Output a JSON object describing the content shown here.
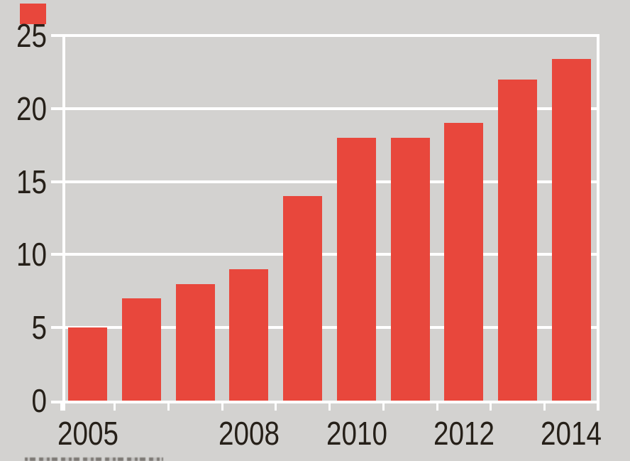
{
  "brand": {
    "tab_color": "#E8473C"
  },
  "chart_data": {
    "type": "bar",
    "title": "",
    "categories": [
      "2005",
      "2006",
      "2007",
      "2008",
      "2009",
      "2010",
      "2011",
      "2012",
      "2013",
      "2014"
    ],
    "values": [
      5,
      7,
      8,
      9,
      14,
      18,
      18,
      19,
      22,
      23.4
    ],
    "xlabel": "",
    "ylabel": "",
    "ylim": [
      0,
      25
    ],
    "y_ticks": [
      "25",
      "20",
      "15",
      "10",
      "5",
      "0"
    ],
    "y_tick_values": [
      25,
      20,
      15,
      10,
      5,
      0
    ],
    "x_visible_labels": [
      {
        "label": "2005",
        "index": 0
      },
      {
        "label": "2008",
        "index": 3
      },
      {
        "label": "2010",
        "index": 5
      },
      {
        "label": "2012",
        "index": 7
      },
      {
        "label": "2014",
        "index": 9
      }
    ],
    "legend": [],
    "grid": "horizontal-white-gridlines-behind-bars",
    "bar_color": "#E8473C",
    "background_color": "#D3D2D0",
    "gridline_color": "#FFFFFF",
    "axis_text_color": "#262019"
  }
}
